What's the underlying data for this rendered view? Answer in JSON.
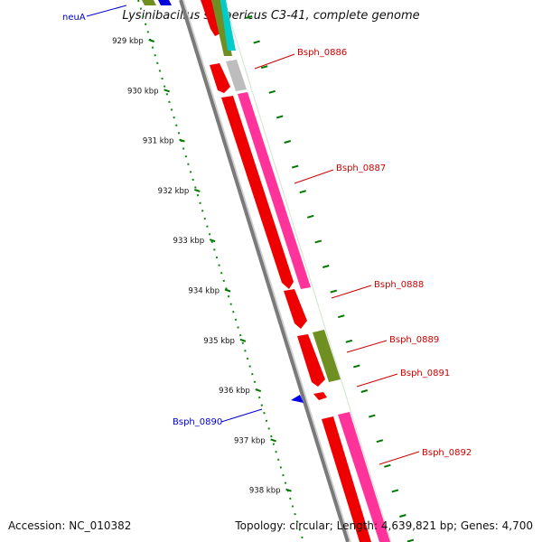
{
  "title": "Lysinibacillus sphaericus C3-41, complete genome",
  "accession_text": "Accession: NC_010382",
  "summary_text": "Topology: circular; Length: 4,639,821 bp; Genes: 4,700",
  "colors": {
    "forward_label": "#cc0000",
    "reverse_label": "#0000cc",
    "tick": "#007700",
    "backbone": "#808080"
  },
  "ticks": [
    "929 kbp",
    "930 kbp",
    "931 kbp",
    "932 kbp",
    "933 kbp",
    "934 kbp",
    "935 kbp",
    "936 kbp",
    "937 kbp",
    "938 kbp"
  ],
  "genes": [
    {
      "name": "neuA",
      "strand": "reverse"
    },
    {
      "name": "Bsph_0886",
      "strand": "forward"
    },
    {
      "name": "Bsph_0887",
      "strand": "forward"
    },
    {
      "name": "Bsph_0888",
      "strand": "forward"
    },
    {
      "name": "Bsph_0889",
      "strand": "forward"
    },
    {
      "name": "Bsph_0891",
      "strand": "forward"
    },
    {
      "name": "Bsph_0890",
      "strand": "reverse"
    },
    {
      "name": "Bsph_0892",
      "strand": "forward"
    }
  ]
}
